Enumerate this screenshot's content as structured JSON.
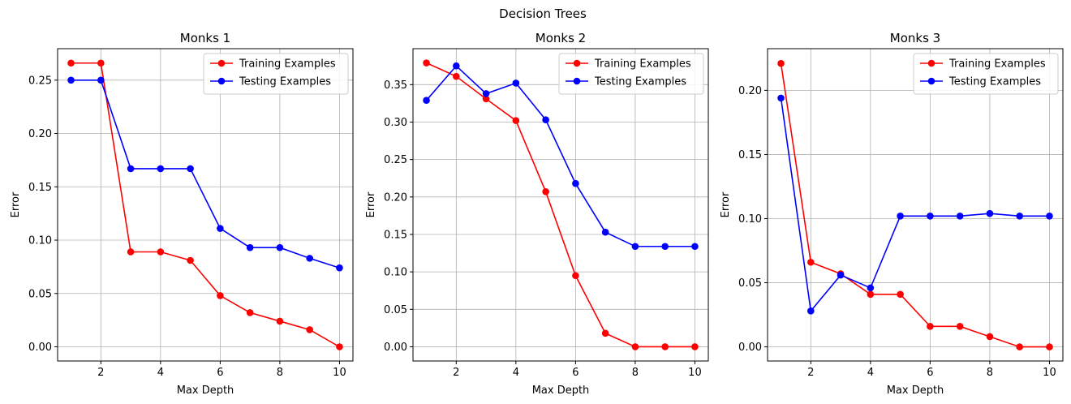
{
  "figure": {
    "suptitle": "Decision Trees"
  },
  "chart_data": [
    {
      "type": "line",
      "title": "Monks 1",
      "xlabel": "Max Depth",
      "ylabel": "Error",
      "xlim": [
        0.55,
        10.45
      ],
      "ylim": [
        -0.0133,
        0.2795
      ],
      "xticks": [
        2,
        4,
        6,
        8,
        10
      ],
      "xtick_labels": [
        "2",
        "4",
        "6",
        "8",
        "10"
      ],
      "yticks": [
        0.0,
        0.05,
        0.1,
        0.15,
        0.2,
        0.25
      ],
      "ytick_labels": [
        "0.00",
        "0.05",
        "0.10",
        "0.15",
        "0.20",
        "0.25"
      ],
      "grid": true,
      "legend": "top-right",
      "x": [
        1,
        2,
        3,
        4,
        5,
        6,
        7,
        8,
        9,
        10
      ],
      "series": [
        {
          "name": "Training Examples",
          "color": "#ff0000",
          "values": [
            0.266,
            0.266,
            0.089,
            0.089,
            0.081,
            0.048,
            0.032,
            0.024,
            0.016,
            0.0
          ]
        },
        {
          "name": "Testing Examples",
          "color": "#0000ff",
          "values": [
            0.25,
            0.25,
            0.167,
            0.167,
            0.167,
            0.111,
            0.093,
            0.093,
            0.083,
            0.074
          ]
        }
      ]
    },
    {
      "type": "line",
      "title": "Monks 2",
      "xlabel": "Max Depth",
      "ylabel": "Error",
      "xlim": [
        0.55,
        10.45
      ],
      "ylim": [
        -0.019,
        0.398
      ],
      "xticks": [
        2,
        4,
        6,
        8,
        10
      ],
      "xtick_labels": [
        "2",
        "4",
        "6",
        "8",
        "10"
      ],
      "yticks": [
        0.0,
        0.05,
        0.1,
        0.15,
        0.2,
        0.25,
        0.3,
        0.35
      ],
      "ytick_labels": [
        "0.00",
        "0.05",
        "0.10",
        "0.15",
        "0.20",
        "0.25",
        "0.30",
        "0.35"
      ],
      "grid": true,
      "legend": "top-right",
      "x": [
        1,
        2,
        3,
        4,
        5,
        6,
        7,
        8,
        9,
        10
      ],
      "series": [
        {
          "name": "Training Examples",
          "color": "#ff0000",
          "values": [
            0.379,
            0.361,
            0.331,
            0.302,
            0.207,
            0.095,
            0.018,
            0.0,
            0.0,
            0.0
          ]
        },
        {
          "name": "Testing Examples",
          "color": "#0000ff",
          "values": [
            0.329,
            0.375,
            0.338,
            0.352,
            0.303,
            0.218,
            0.153,
            0.134,
            0.134,
            0.134
          ]
        }
      ]
    },
    {
      "type": "line",
      "title": "Monks 3",
      "xlabel": "Max Depth",
      "ylabel": "Error",
      "xlim": [
        0.55,
        10.45
      ],
      "ylim": [
        -0.011,
        0.2325
      ],
      "xticks": [
        2,
        4,
        6,
        8,
        10
      ],
      "xtick_labels": [
        "2",
        "4",
        "6",
        "8",
        "10"
      ],
      "yticks": [
        0.0,
        0.05,
        0.1,
        0.15,
        0.2
      ],
      "ytick_labels": [
        "0.00",
        "0.05",
        "0.10",
        "0.15",
        "0.20"
      ],
      "grid": true,
      "legend": "top-right",
      "x": [
        1,
        2,
        3,
        4,
        5,
        6,
        7,
        8,
        9,
        10
      ],
      "series": [
        {
          "name": "Training Examples",
          "color": "#ff0000",
          "values": [
            0.221,
            0.066,
            0.057,
            0.041,
            0.041,
            0.016,
            0.016,
            0.008,
            0.0,
            0.0
          ]
        },
        {
          "name": "Testing Examples",
          "color": "#0000ff",
          "values": [
            0.194,
            0.028,
            0.056,
            0.046,
            0.102,
            0.102,
            0.102,
            0.104,
            0.102,
            0.102
          ]
        }
      ]
    }
  ]
}
